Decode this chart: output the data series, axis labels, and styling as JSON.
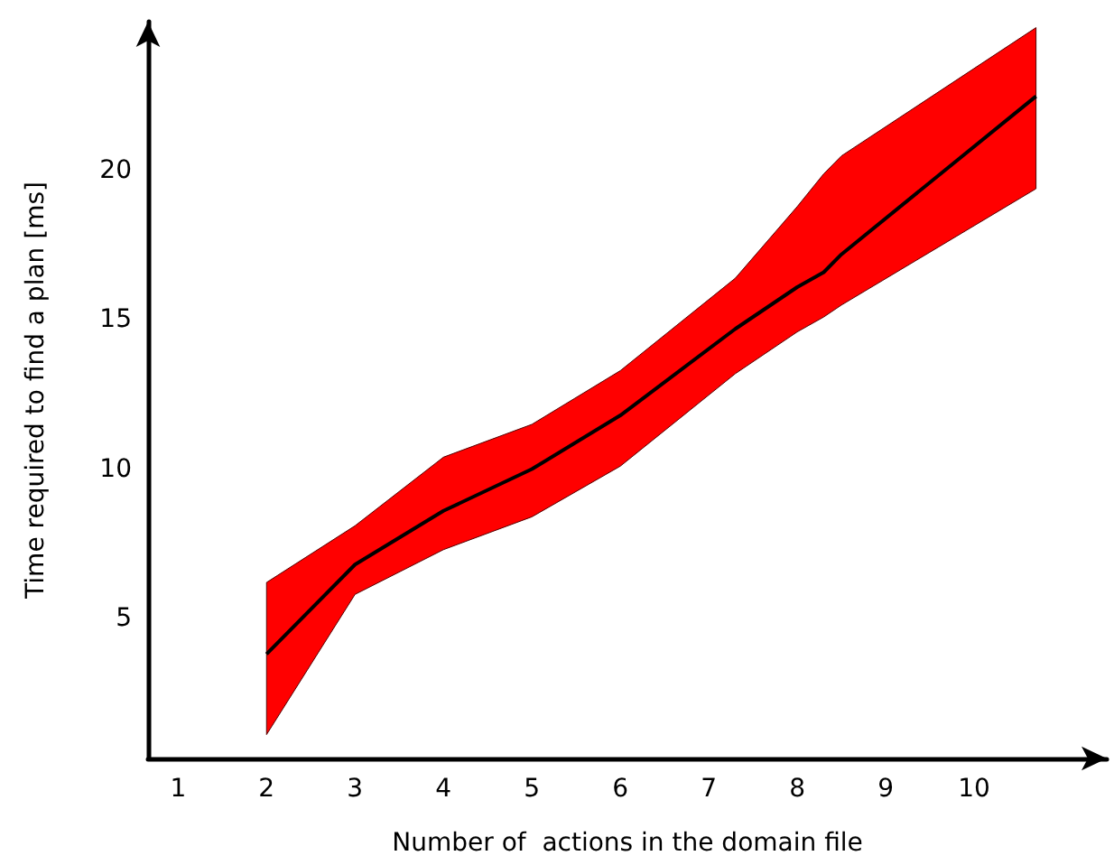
{
  "chart_data": {
    "type": "line",
    "xlabel": "Number of  actions in the domain file",
    "ylabel": "Time required to find a plan [ms]",
    "x": [
      2,
      3,
      4,
      5,
      6,
      7.3,
      8,
      8.3,
      8.5,
      10.7
    ],
    "series": [
      {
        "color": "#000000",
        "values": [
          3.8,
          6.8,
          8.6,
          10,
          11.8,
          14.7,
          16.1,
          16.6,
          17.2,
          22.5
        ],
        "lower": [
          1.1,
          5.8,
          7.3,
          8.4,
          10.1,
          13.2,
          14.6,
          15.1,
          15.5,
          19.4
        ],
        "upper": [
          6.2,
          8.1,
          10.4,
          11.5,
          13.3,
          16.4,
          18.8,
          19.9,
          20.5,
          24.8
        ]
      }
    ],
    "xlim": [
      0.66,
      11.5
    ],
    "ylim": [
      0.3,
      25
    ],
    "xticks": [
      1,
      2,
      3,
      4,
      5,
      6,
      7,
      8,
      9,
      10
    ],
    "yticks": [
      5,
      10,
      15,
      20
    ],
    "grid": false,
    "marker": "none",
    "line_style": "solid"
  }
}
